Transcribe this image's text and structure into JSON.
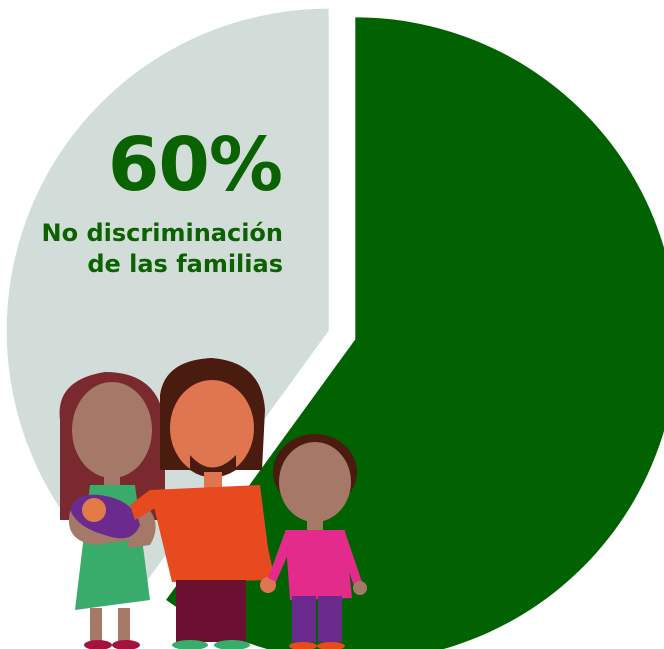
{
  "chart_data": {
    "type": "pie",
    "slices": [
      {
        "value": 60,
        "color": "#006200"
      },
      {
        "value": 40,
        "color": "#d2ddd9"
      }
    ]
  },
  "highlight": {
    "value_text": "60%",
    "label_lines": [
      "No discriminación",
      "de las familias"
    ],
    "text_color": "#0a6300"
  },
  "illustration": {
    "figures": [
      "mother-with-baby",
      "father",
      "child"
    ]
  }
}
